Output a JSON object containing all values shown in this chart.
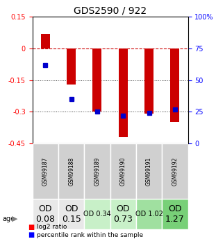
{
  "title": "GDS2590 / 922",
  "samples": [
    "GSM99187",
    "GSM99188",
    "GSM99189",
    "GSM99190",
    "GSM99191",
    "GSM99192"
  ],
  "log2_ratios": [
    0.07,
    -0.17,
    -0.3,
    -0.42,
    -0.31,
    -0.35
  ],
  "percentile_ranks": [
    62,
    35,
    25,
    22,
    24,
    27
  ],
  "ylim_left": [
    -0.45,
    0.15
  ],
  "ylim_right": [
    0,
    100
  ],
  "yticks_left": [
    0.15,
    0,
    -0.15,
    -0.3,
    -0.45
  ],
  "yticks_right": [
    100,
    75,
    50,
    25,
    0
  ],
  "bar_color": "#cc0000",
  "dot_color": "#0000cc",
  "zero_line_color": "#cc0000",
  "hline_color": "#333333",
  "age_labels": [
    "OD\n0.08",
    "OD\n0.15",
    "OD 0.34",
    "OD\n0.73",
    "OD 1.02",
    "OD\n1.27"
  ],
  "age_bg_colors": [
    "#e8e8e8",
    "#e8e8e8",
    "#c8f0c8",
    "#c8f0c8",
    "#a0e0a0",
    "#78d078"
  ],
  "age_font_sizes": [
    9,
    9,
    7,
    9,
    7,
    9
  ]
}
